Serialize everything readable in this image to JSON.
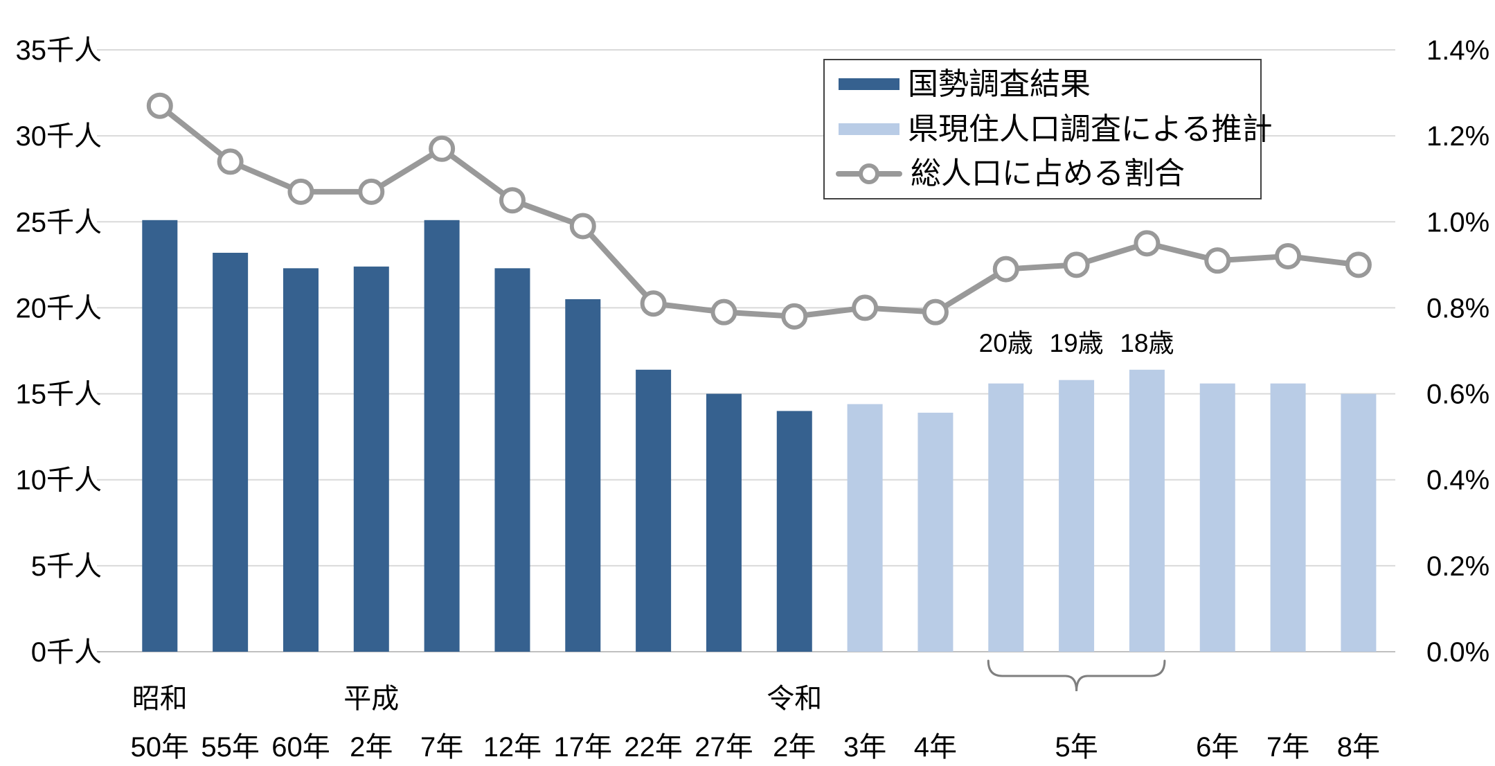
{
  "chart_data": {
    "type": "bar+line",
    "title": "",
    "categories": [
      "50年",
      "55年",
      "60年",
      "2年",
      "7年",
      "12年",
      "17年",
      "22年",
      "27年",
      "2年",
      "3年",
      "4年",
      "",
      "5年",
      "",
      "6年",
      "7年",
      "8年"
    ],
    "era_labels": [
      {
        "at": 0,
        "text": "昭和"
      },
      {
        "at": 3,
        "text": "平成"
      },
      {
        "at": 9,
        "text": "令和"
      }
    ],
    "age_labels": [
      {
        "at": 12,
        "text": "20歳"
      },
      {
        "at": 13,
        "text": "19歳"
      },
      {
        "at": 14,
        "text": "18歳"
      }
    ],
    "series": [
      {
        "name": "国勢調査結果",
        "type": "bar",
        "axis": "left",
        "color": "#36618f",
        "values": [
          25.1,
          23.2,
          22.3,
          22.4,
          25.1,
          22.3,
          20.5,
          16.4,
          15.0,
          14.0,
          null,
          null,
          null,
          null,
          null,
          null,
          null,
          null
        ]
      },
      {
        "name": "県現住人口調査による推計",
        "type": "bar",
        "axis": "left",
        "color": "#b9cce6",
        "values": [
          null,
          null,
          null,
          null,
          null,
          null,
          null,
          null,
          null,
          null,
          14.4,
          13.9,
          15.6,
          15.8,
          16.4,
          15.6,
          15.6,
          15.0
        ]
      },
      {
        "name": "総人口に占める割合",
        "type": "line",
        "axis": "right",
        "color": "#999999",
        "values": [
          1.27,
          1.14,
          1.07,
          1.07,
          1.17,
          1.05,
          0.99,
          0.81,
          0.79,
          0.78,
          0.8,
          0.79,
          0.89,
          0.9,
          0.95,
          0.91,
          0.92,
          0.9
        ]
      }
    ],
    "left_axis": {
      "unit": "千人",
      "min": 0,
      "max": 35,
      "step": 5,
      "ticks": [
        "35千人",
        "30千人",
        "25千人",
        "20千人",
        "15千人",
        "10千人",
        "5千人",
        "0千人"
      ]
    },
    "right_axis": {
      "unit": "%",
      "min": 0.0,
      "max": 1.4,
      "step": 0.2,
      "ticks": [
        "1.4%",
        "1.2%",
        "1.0%",
        "0.8%",
        "0.6%",
        "0.4%",
        "0.2%",
        "0.0%"
      ]
    },
    "bracket": {
      "from": 12,
      "to": 14
    },
    "grid": true,
    "legend_position": "top-right"
  },
  "colors": {
    "census_bar": "#36618f",
    "estimate_bar": "#b9cce6",
    "ratio_line": "#999999",
    "gridline": "#d9d9d9",
    "baseline": "#bfbfbf",
    "bracket": "#7f7f7f",
    "text": "#000000"
  }
}
